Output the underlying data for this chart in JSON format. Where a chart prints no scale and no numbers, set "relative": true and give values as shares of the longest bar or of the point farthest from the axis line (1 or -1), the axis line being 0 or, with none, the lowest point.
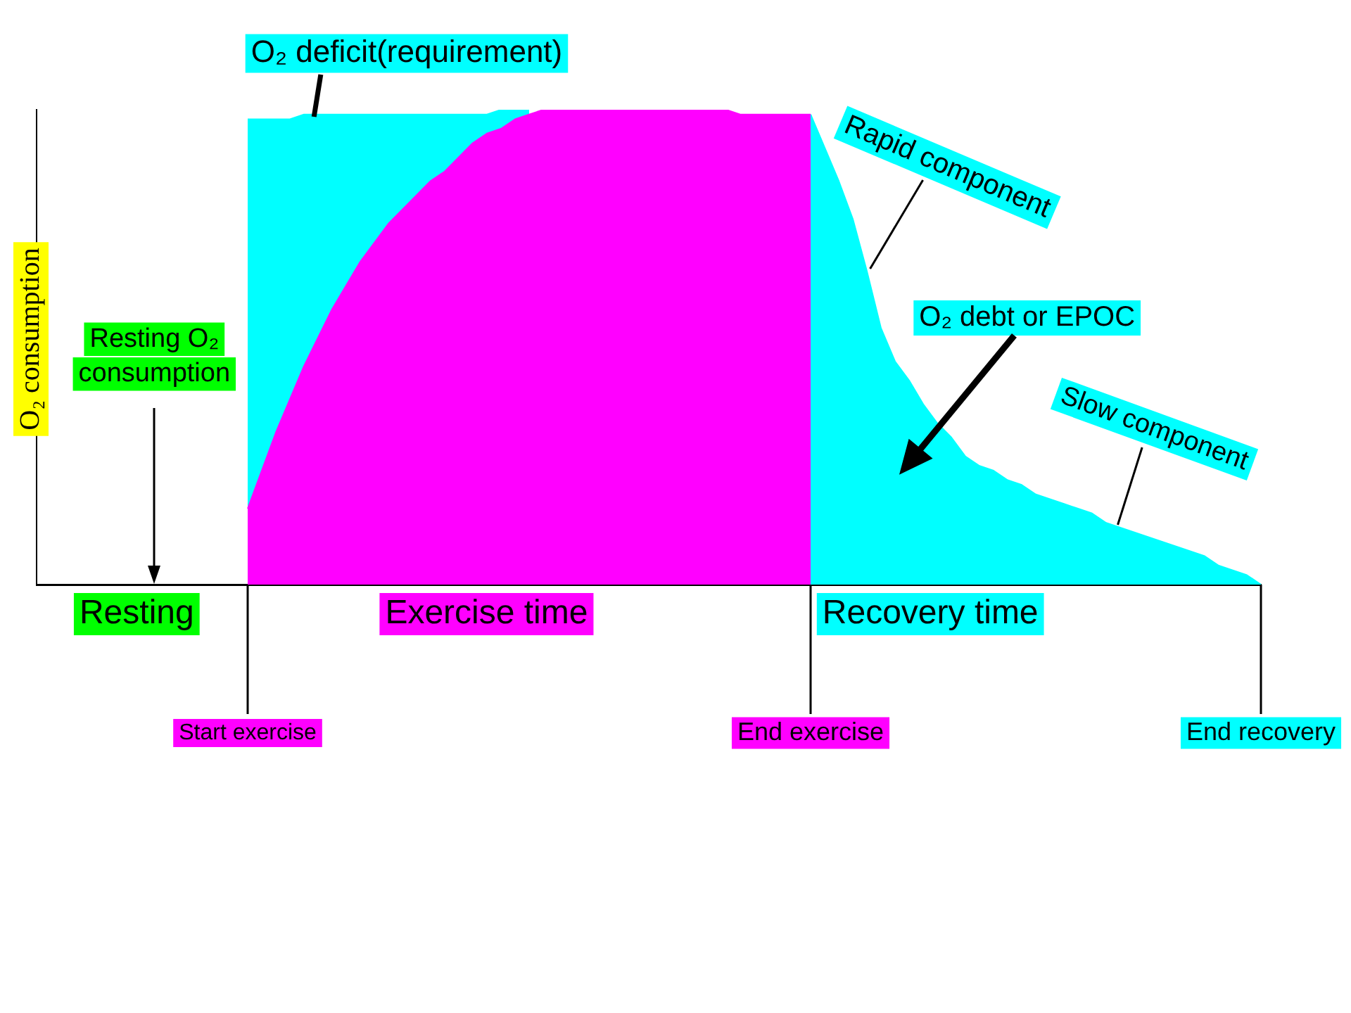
{
  "chart_data": {
    "type": "area",
    "relative": true,
    "ylabel": "O₂ consumption",
    "categories": [
      null,
      null,
      null,
      null,
      null,
      null,
      null,
      null,
      null,
      null,
      null,
      null,
      null,
      null,
      null,
      "Start exercise",
      null,
      null,
      null,
      null,
      null,
      null,
      null,
      null,
      null,
      null,
      null,
      null,
      null,
      null,
      null,
      null,
      null,
      null,
      null,
      null,
      null,
      null,
      null,
      null,
      null,
      null,
      null,
      null,
      null,
      null,
      null,
      null,
      null,
      null,
      null,
      null,
      null,
      null,
      null,
      "End exercise",
      null,
      null,
      null,
      null,
      null,
      null,
      null,
      null,
      null,
      null,
      null,
      null,
      null,
      null,
      null,
      null,
      null,
      null,
      null,
      null,
      null,
      null,
      null,
      null,
      null,
      null,
      null,
      null,
      null,
      null,
      null,
      "End recovery"
    ],
    "series": [
      {
        "color": "#00ffff",
        "values": [
          null,
          null,
          null,
          null,
          null,
          null,
          null,
          null,
          null,
          null,
          null,
          null,
          null,
          null,
          null,
          0.98,
          0.98,
          0.98,
          0.98,
          0.99,
          0.99,
          0.99,
          0.99,
          0.99,
          0.99,
          0.99,
          0.99,
          0.99,
          0.99,
          0.99,
          0.99,
          0.99,
          0.99,
          1.0,
          1.0,
          1.0,
          null,
          null,
          null,
          null,
          null,
          null,
          null,
          null,
          null,
          null,
          null,
          null,
          null,
          null,
          null,
          null,
          null,
          null,
          null,
          0.99,
          0.92,
          0.85,
          0.77,
          0.66,
          0.54,
          0.47,
          0.43,
          0.38,
          0.34,
          0.31,
          0.27,
          0.25,
          0.24,
          0.22,
          0.21,
          0.19,
          0.18,
          0.17,
          0.16,
          0.15,
          0.13,
          0.12,
          0.11,
          0.1,
          0.09,
          0.08,
          0.07,
          0.06,
          0.04,
          0.03,
          0.02,
          0
        ]
      },
      {
        "color": "#ff00ff",
        "values": [
          null,
          null,
          null,
          null,
          null,
          null,
          null,
          null,
          null,
          null,
          null,
          null,
          null,
          null,
          null,
          0.16,
          0.24,
          0.32,
          0.39,
          0.46,
          0.52,
          0.58,
          0.63,
          0.68,
          0.72,
          0.76,
          0.79,
          0.82,
          0.85,
          0.87,
          0.9,
          0.93,
          0.95,
          0.96,
          0.98,
          0.99,
          1.0,
          1.0,
          1.0,
          1.0,
          1.0,
          1.0,
          1.0,
          1.0,
          1.0,
          1.0,
          1.0,
          1.0,
          1.0,
          1.0,
          0.99,
          0.99,
          0.99,
          0.99,
          0.99,
          0.99,
          null,
          null,
          null,
          null,
          null,
          null,
          null,
          null,
          null,
          null,
          null,
          null,
          null,
          null,
          null,
          null,
          null,
          null,
          null,
          null,
          null,
          null,
          null,
          null,
          null,
          null,
          null,
          null,
          null,
          null,
          null,
          null
        ]
      }
    ],
    "marker": "none",
    "annotations": [
      "O₂ deficit(requirement)",
      "Rapid component",
      "O₂ debt or EPOC",
      "Slow component",
      "Resting O₂ consumption",
      "Resting",
      "Exercise time",
      "Recovery time"
    ]
  }
}
